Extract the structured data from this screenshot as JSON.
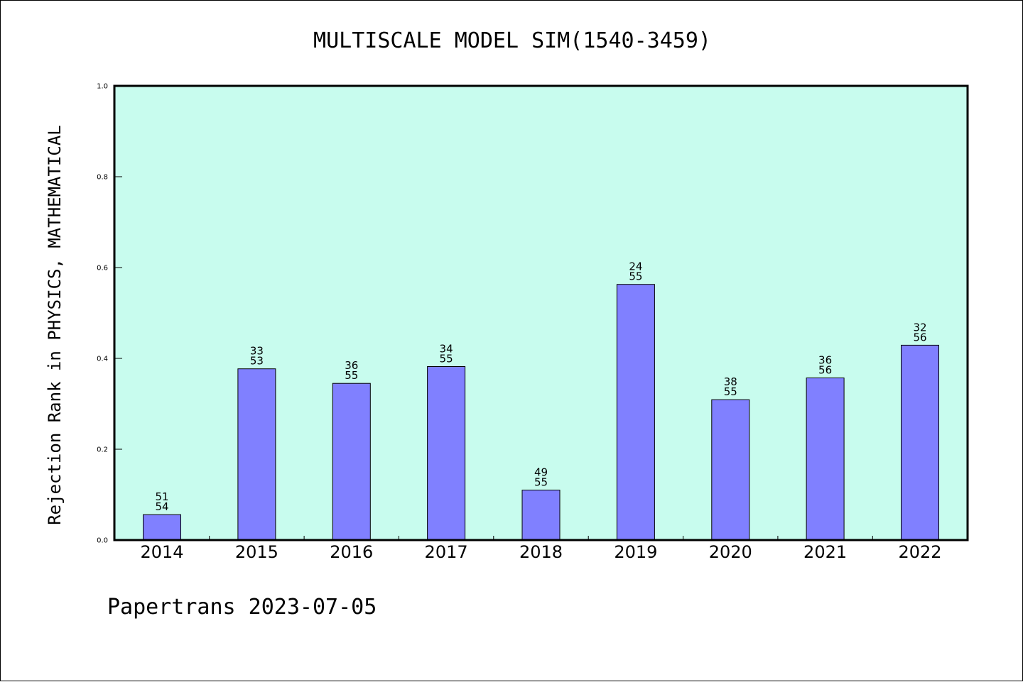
{
  "chart_data": {
    "type": "bar",
    "title": "MULTISCALE MODEL SIM(1540-3459)",
    "xlabel": "",
    "ylabel": "Rejection Rank in PHYSICS, MATHEMATICAL",
    "ylim": [
      0,
      1.0
    ],
    "yticks": [
      "0.0",
      "0.2",
      "0.4",
      "0.6",
      "0.8",
      "1.0"
    ],
    "grid": false,
    "categories": [
      "2014",
      "2015",
      "2016",
      "2017",
      "2018",
      "2019",
      "2020",
      "2021",
      "2022"
    ],
    "values": [
      0.056,
      0.377,
      0.345,
      0.382,
      0.11,
      0.563,
      0.309,
      0.357,
      0.429
    ],
    "bar_labels": [
      [
        "51",
        "54"
      ],
      [
        "33",
        "53"
      ],
      [
        "36",
        "55"
      ],
      [
        "34",
        "55"
      ],
      [
        "49",
        "55"
      ],
      [
        "24",
        "55"
      ],
      [
        "38",
        "55"
      ],
      [
        "36",
        "56"
      ],
      [
        "32",
        "56"
      ]
    ],
    "colors": {
      "bar": "#8080ff",
      "plot_background": "#c8fcee",
      "axis": "#000000"
    }
  },
  "footer": "Papertrans 2023-07-05"
}
